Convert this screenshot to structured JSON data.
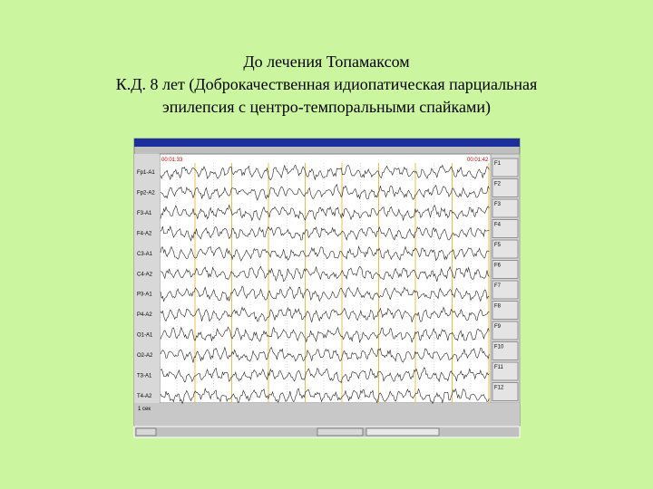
{
  "header": {
    "lines": [
      "До лечения Топамаксом",
      "К.Д. 8 лет (Доброкачественная идиопатическая парциальная",
      "эпилепсия с центро-темпоральными спайками)"
    ]
  },
  "eeg": {
    "start_time": "00:01:33",
    "end_time": "00:01:42",
    "channels": [
      "Fp1-A1",
      "Fp2-A2",
      "F3-A1",
      "F4-A2",
      "C3-A1",
      "C4-A2",
      "P3-A1",
      "P4-A2",
      "O1-A1",
      "O2-A2",
      "T3-A1",
      "T4-A2"
    ],
    "function_keys": [
      "F1",
      "F2",
      "F3",
      "F4",
      "F5",
      "F6",
      "F7",
      "F8",
      "F9",
      "F10",
      "F11",
      "F12"
    ],
    "timebase": "1 сек"
  }
}
